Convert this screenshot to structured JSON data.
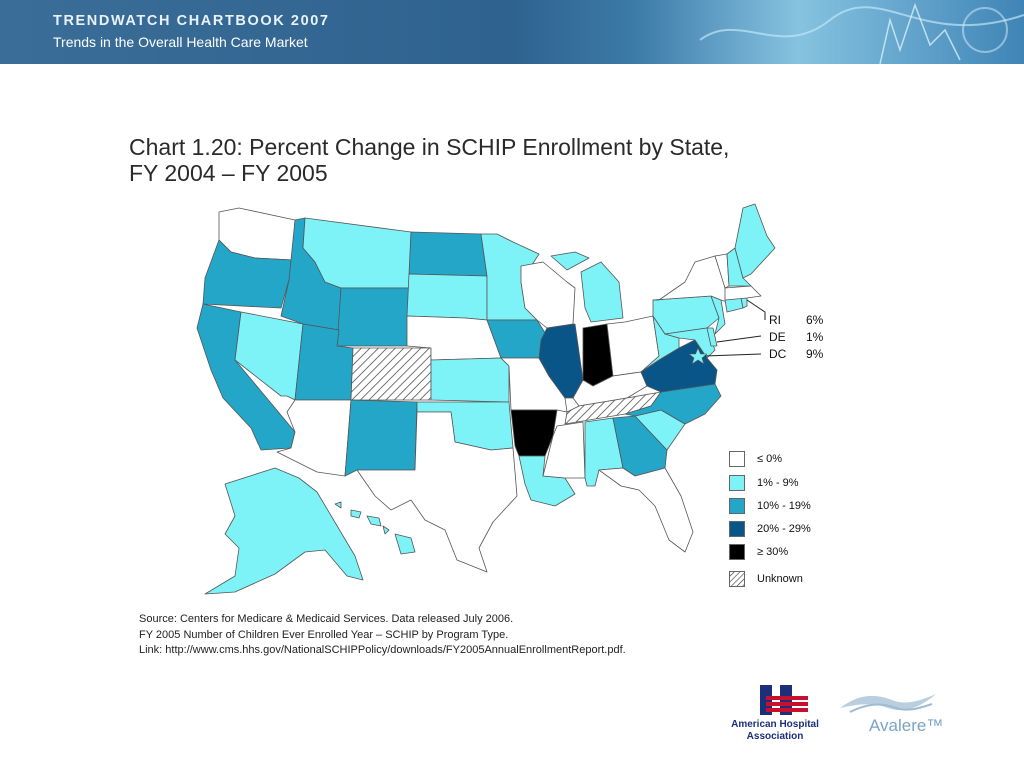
{
  "header": {
    "line1": "TRENDWATCH CHARTBOOK 2007",
    "line2": "Trends in the Overall Health Care Market"
  },
  "title": {
    "line1": "Chart 1.20: Percent Change in SCHIP Enrollment by State,",
    "line2": "FY 2004 – FY 2005"
  },
  "colors": {
    "le0": "#ffffff",
    "p1_9": "#7df3f7",
    "p10_19": "#24a6c8",
    "p20_29": "#0a5587",
    "ge30": "#000000",
    "border": "#555555"
  },
  "small_states": [
    {
      "abbr": "RI",
      "value": "6%"
    },
    {
      "abbr": "DE",
      "value": "1%"
    },
    {
      "abbr": "DC",
      "value": "9%"
    }
  ],
  "legend": [
    {
      "label": "≤ 0%",
      "color_key": "le0"
    },
    {
      "label": "1% - 9%",
      "color_key": "p1_9"
    },
    {
      "label": "10% - 19%",
      "color_key": "p10_19"
    },
    {
      "label": "20% - 29%",
      "color_key": "p20_29"
    },
    {
      "label": "≥ 30%",
      "color_key": "ge30"
    },
    {
      "label": "Unknown",
      "color_key": "unknown"
    }
  ],
  "states": {
    "WA": "le0",
    "OR": "p10_19",
    "CA": "p10_19",
    "ID": "p10_19",
    "NV": "p1_9",
    "UT": "p10_19",
    "AZ": "le0",
    "MT": "p1_9",
    "WY": "p10_19",
    "CO": "unknown",
    "NM": "p10_19",
    "ND": "p10_19",
    "SD": "p1_9",
    "NE": "le0",
    "KS": "p1_9",
    "OK": "p1_9",
    "TX": "le0",
    "MN": "p1_9",
    "IA": "p10_19",
    "MO": "le0",
    "AR": "ge30",
    "LA": "p1_9",
    "WI": "le0",
    "IL": "p20_29",
    "MS": "le0",
    "MI": "p1_9",
    "IN": "ge30",
    "KY": "le0",
    "TN": "unknown",
    "AL": "p1_9",
    "OH": "le0",
    "GA": "p10_19",
    "FL": "le0",
    "SC": "p1_9",
    "NC": "p10_19",
    "VA": "p20_29",
    "WV": "p1_9",
    "PA": "p1_9",
    "NY": "le0",
    "NJ": "p1_9",
    "MD": "p1_9",
    "DE": "p1_9",
    "CT": "p1_9",
    "RI": "p1_9",
    "MA": "le0",
    "VT": "le0",
    "NH": "p1_9",
    "ME": "p1_9",
    "AK": "p1_9",
    "HI": "p1_9",
    "DC": "p1_9"
  },
  "source": {
    "line1": "Source: Centers for Medicare & Medicaid Services. Data released July 2006.",
    "line2": "FY 2005 Number of Children Ever Enrolled Year – SCHIP by Program Type.",
    "line3": "Link: http://www.cms.hhs.gov/NationalSCHIPPolicy/downloads/FY2005AnnualEnrollmentReport.pdf."
  },
  "logos": {
    "aha_line1": "American Hospital",
    "aha_line2": "Association",
    "avalere": "Avalere™"
  }
}
